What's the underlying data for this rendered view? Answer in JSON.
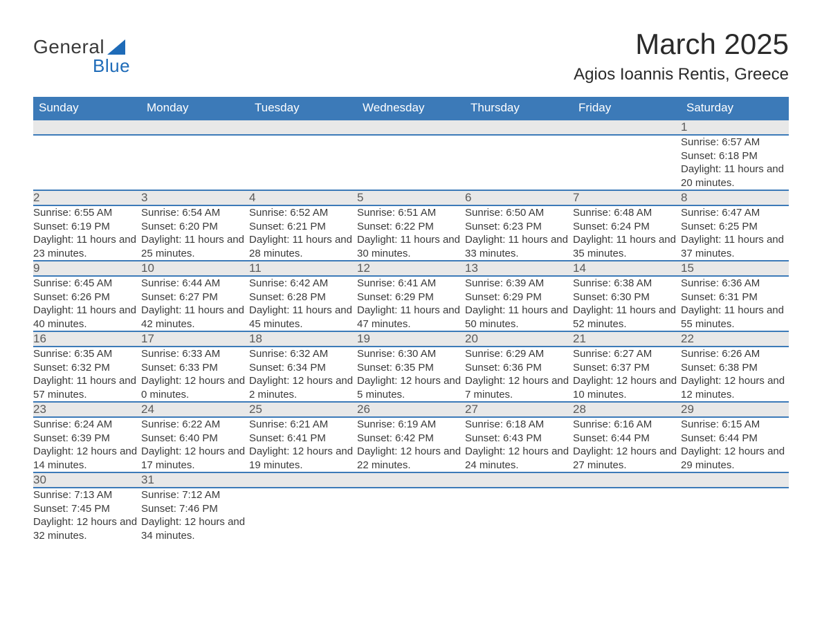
{
  "brand": {
    "word1": "General",
    "word2": "Blue",
    "accent_color": "#1e6bb8"
  },
  "title": "March 2025",
  "location": "Agios Ioannis Rentis, Greece",
  "colors": {
    "header_bg": "#3c7ab8",
    "header_fg": "#ffffff",
    "daynum_bg": "#e8e8e8",
    "row_divider": "#3c7ab8",
    "text": "#3a3a3a"
  },
  "day_headers": [
    "Sunday",
    "Monday",
    "Tuesday",
    "Wednesday",
    "Thursday",
    "Friday",
    "Saturday"
  ],
  "weeks": [
    [
      null,
      null,
      null,
      null,
      null,
      null,
      {
        "n": "1",
        "sr": "6:57 AM",
        "ss": "6:18 PM",
        "dl": "11 hours and 20 minutes."
      }
    ],
    [
      {
        "n": "2",
        "sr": "6:55 AM",
        "ss": "6:19 PM",
        "dl": "11 hours and 23 minutes."
      },
      {
        "n": "3",
        "sr": "6:54 AM",
        "ss": "6:20 PM",
        "dl": "11 hours and 25 minutes."
      },
      {
        "n": "4",
        "sr": "6:52 AM",
        "ss": "6:21 PM",
        "dl": "11 hours and 28 minutes."
      },
      {
        "n": "5",
        "sr": "6:51 AM",
        "ss": "6:22 PM",
        "dl": "11 hours and 30 minutes."
      },
      {
        "n": "6",
        "sr": "6:50 AM",
        "ss": "6:23 PM",
        "dl": "11 hours and 33 minutes."
      },
      {
        "n": "7",
        "sr": "6:48 AM",
        "ss": "6:24 PM",
        "dl": "11 hours and 35 minutes."
      },
      {
        "n": "8",
        "sr": "6:47 AM",
        "ss": "6:25 PM",
        "dl": "11 hours and 37 minutes."
      }
    ],
    [
      {
        "n": "9",
        "sr": "6:45 AM",
        "ss": "6:26 PM",
        "dl": "11 hours and 40 minutes."
      },
      {
        "n": "10",
        "sr": "6:44 AM",
        "ss": "6:27 PM",
        "dl": "11 hours and 42 minutes."
      },
      {
        "n": "11",
        "sr": "6:42 AM",
        "ss": "6:28 PM",
        "dl": "11 hours and 45 minutes."
      },
      {
        "n": "12",
        "sr": "6:41 AM",
        "ss": "6:29 PM",
        "dl": "11 hours and 47 minutes."
      },
      {
        "n": "13",
        "sr": "6:39 AM",
        "ss": "6:29 PM",
        "dl": "11 hours and 50 minutes."
      },
      {
        "n": "14",
        "sr": "6:38 AM",
        "ss": "6:30 PM",
        "dl": "11 hours and 52 minutes."
      },
      {
        "n": "15",
        "sr": "6:36 AM",
        "ss": "6:31 PM",
        "dl": "11 hours and 55 minutes."
      }
    ],
    [
      {
        "n": "16",
        "sr": "6:35 AM",
        "ss": "6:32 PM",
        "dl": "11 hours and 57 minutes."
      },
      {
        "n": "17",
        "sr": "6:33 AM",
        "ss": "6:33 PM",
        "dl": "12 hours and 0 minutes."
      },
      {
        "n": "18",
        "sr": "6:32 AM",
        "ss": "6:34 PM",
        "dl": "12 hours and 2 minutes."
      },
      {
        "n": "19",
        "sr": "6:30 AM",
        "ss": "6:35 PM",
        "dl": "12 hours and 5 minutes."
      },
      {
        "n": "20",
        "sr": "6:29 AM",
        "ss": "6:36 PM",
        "dl": "12 hours and 7 minutes."
      },
      {
        "n": "21",
        "sr": "6:27 AM",
        "ss": "6:37 PM",
        "dl": "12 hours and 10 minutes."
      },
      {
        "n": "22",
        "sr": "6:26 AM",
        "ss": "6:38 PM",
        "dl": "12 hours and 12 minutes."
      }
    ],
    [
      {
        "n": "23",
        "sr": "6:24 AM",
        "ss": "6:39 PM",
        "dl": "12 hours and 14 minutes."
      },
      {
        "n": "24",
        "sr": "6:22 AM",
        "ss": "6:40 PM",
        "dl": "12 hours and 17 minutes."
      },
      {
        "n": "25",
        "sr": "6:21 AM",
        "ss": "6:41 PM",
        "dl": "12 hours and 19 minutes."
      },
      {
        "n": "26",
        "sr": "6:19 AM",
        "ss": "6:42 PM",
        "dl": "12 hours and 22 minutes."
      },
      {
        "n": "27",
        "sr": "6:18 AM",
        "ss": "6:43 PM",
        "dl": "12 hours and 24 minutes."
      },
      {
        "n": "28",
        "sr": "6:16 AM",
        "ss": "6:44 PM",
        "dl": "12 hours and 27 minutes."
      },
      {
        "n": "29",
        "sr": "6:15 AM",
        "ss": "6:44 PM",
        "dl": "12 hours and 29 minutes."
      }
    ],
    [
      {
        "n": "30",
        "sr": "7:13 AM",
        "ss": "7:45 PM",
        "dl": "12 hours and 32 minutes."
      },
      {
        "n": "31",
        "sr": "7:12 AM",
        "ss": "7:46 PM",
        "dl": "12 hours and 34 minutes."
      },
      null,
      null,
      null,
      null,
      null
    ]
  ],
  "labels": {
    "sunrise": "Sunrise: ",
    "sunset": "Sunset: ",
    "daylight": "Daylight: "
  }
}
